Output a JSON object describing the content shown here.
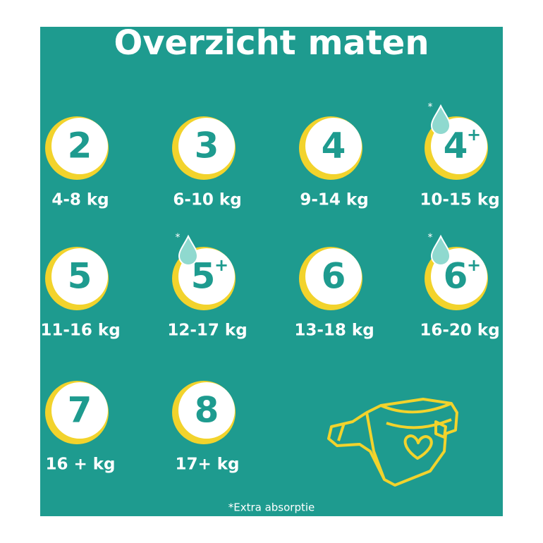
{
  "header": {
    "title": "Overzicht maten"
  },
  "sizes": [
    {
      "size": "2",
      "weight": "4-8 kg"
    },
    {
      "size": "3",
      "weight": "6-10 kg"
    },
    {
      "size": "4",
      "weight": "9-14 kg"
    },
    {
      "size": "4",
      "plus": "+",
      "mark": "*",
      "weight": "10-15 kg"
    },
    {
      "size": "5",
      "weight": "11-16 kg"
    },
    {
      "size": "5",
      "plus": "+",
      "mark": "*",
      "weight": "12-17 kg"
    },
    {
      "size": "6",
      "weight": "13-18 kg"
    },
    {
      "size": "6",
      "plus": "+",
      "mark": "*",
      "weight": "16-20 kg"
    },
    {
      "size": "7",
      "weight": "16 + kg"
    },
    {
      "size": "8",
      "weight": "17+ kg"
    }
  ],
  "footnote": "*Extra absorptie"
}
